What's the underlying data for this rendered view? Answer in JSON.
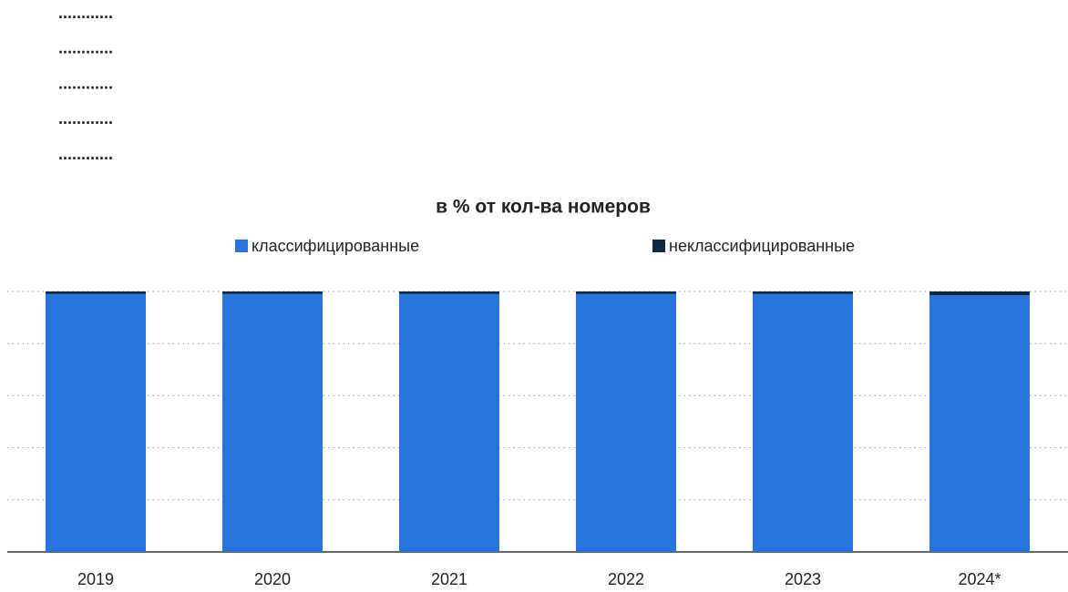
{
  "placeholders": [
    "............",
    "............",
    "............",
    "............",
    "............"
  ],
  "chart_data": {
    "type": "stacked_bar",
    "title": "в % от кол-ва номеров",
    "categories": [
      "2019",
      "2020",
      "2021",
      "2022",
      "2023",
      "2024*"
    ],
    "series": [
      {
        "name": "классифицированные",
        "color": "#2876dd",
        "values": [
          99,
          99,
          99,
          99,
          99,
          98.5
        ]
      },
      {
        "name": "неклассифицированные",
        "color": "#0f2a45",
        "values": [
          1,
          1,
          1,
          1,
          1,
          1.5
        ]
      }
    ],
    "ylim": [
      0,
      100
    ],
    "yticks": [
      0,
      20,
      40,
      60,
      80,
      100
    ],
    "grid": true
  }
}
